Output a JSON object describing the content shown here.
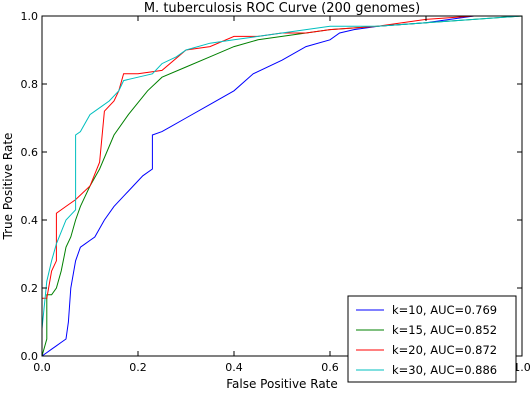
{
  "chart_data": {
    "type": "line",
    "title": "M. tuberculosis ROC Curve (200 genomes)",
    "xlabel": "False Positive Rate",
    "ylabel": "True Positive Rate",
    "xlim": [
      0.0,
      1.0
    ],
    "ylim": [
      0.0,
      1.0
    ],
    "xticks": [
      "0.0",
      "0.2",
      "0.4",
      "0.6",
      "0.8",
      "1.0"
    ],
    "yticks": [
      "0.0",
      "0.2",
      "0.4",
      "0.6",
      "0.8",
      "1.0"
    ],
    "legend_position": "lower-right",
    "grid": false,
    "series": [
      {
        "name": "k=10, AUC=0.769",
        "color": "#0000ff",
        "points": [
          [
            0,
            0
          ],
          [
            0.01,
            0.01
          ],
          [
            0.02,
            0.02
          ],
          [
            0.03,
            0.03
          ],
          [
            0.04,
            0.04
          ],
          [
            0.05,
            0.05
          ],
          [
            0.055,
            0.1
          ],
          [
            0.06,
            0.2
          ],
          [
            0.07,
            0.28
          ],
          [
            0.08,
            0.32
          ],
          [
            0.09,
            0.33
          ],
          [
            0.1,
            0.34
          ],
          [
            0.11,
            0.35
          ],
          [
            0.13,
            0.4
          ],
          [
            0.15,
            0.44
          ],
          [
            0.17,
            0.47
          ],
          [
            0.19,
            0.5
          ],
          [
            0.21,
            0.53
          ],
          [
            0.23,
            0.55
          ],
          [
            0.23,
            0.65
          ],
          [
            0.25,
            0.66
          ],
          [
            0.3,
            0.7
          ],
          [
            0.35,
            0.74
          ],
          [
            0.4,
            0.78
          ],
          [
            0.44,
            0.83
          ],
          [
            0.5,
            0.87
          ],
          [
            0.55,
            0.91
          ],
          [
            0.6,
            0.93
          ],
          [
            0.62,
            0.95
          ],
          [
            0.65,
            0.96
          ],
          [
            0.7,
            0.97
          ],
          [
            0.8,
            0.98
          ],
          [
            0.85,
            0.99
          ],
          [
            0.9,
            1.0
          ],
          [
            1.0,
            1.0
          ]
        ]
      },
      {
        "name": "k=15, AUC=0.852",
        "color": "#008000",
        "points": [
          [
            0,
            0
          ],
          [
            0.01,
            0.05
          ],
          [
            0.01,
            0.18
          ],
          [
            0.02,
            0.18
          ],
          [
            0.03,
            0.2
          ],
          [
            0.04,
            0.25
          ],
          [
            0.05,
            0.32
          ],
          [
            0.06,
            0.35
          ],
          [
            0.07,
            0.4
          ],
          [
            0.08,
            0.44
          ],
          [
            0.09,
            0.47
          ],
          [
            0.1,
            0.5
          ],
          [
            0.12,
            0.55
          ],
          [
            0.15,
            0.65
          ],
          [
            0.18,
            0.71
          ],
          [
            0.22,
            0.78
          ],
          [
            0.25,
            0.82
          ],
          [
            0.3,
            0.85
          ],
          [
            0.35,
            0.88
          ],
          [
            0.4,
            0.91
          ],
          [
            0.45,
            0.93
          ],
          [
            0.5,
            0.94
          ],
          [
            0.55,
            0.95
          ],
          [
            0.6,
            0.96
          ],
          [
            0.7,
            0.97
          ],
          [
            0.8,
            0.98
          ],
          [
            0.9,
            0.99
          ],
          [
            1.0,
            1.0
          ]
        ]
      },
      {
        "name": "k=20, AUC=0.872",
        "color": "#ff0000",
        "points": [
          [
            0,
            0
          ],
          [
            0,
            0.17
          ],
          [
            0.01,
            0.17
          ],
          [
            0.02,
            0.25
          ],
          [
            0.03,
            0.28
          ],
          [
            0.03,
            0.42
          ],
          [
            0.05,
            0.44
          ],
          [
            0.07,
            0.46
          ],
          [
            0.1,
            0.5
          ],
          [
            0.12,
            0.57
          ],
          [
            0.13,
            0.72
          ],
          [
            0.15,
            0.75
          ],
          [
            0.16,
            0.78
          ],
          [
            0.17,
            0.83
          ],
          [
            0.2,
            0.83
          ],
          [
            0.25,
            0.84
          ],
          [
            0.3,
            0.9
          ],
          [
            0.35,
            0.91
          ],
          [
            0.4,
            0.94
          ],
          [
            0.45,
            0.94
          ],
          [
            0.5,
            0.95
          ],
          [
            0.55,
            0.95
          ],
          [
            0.6,
            0.96
          ],
          [
            0.7,
            0.97
          ],
          [
            0.8,
            0.99
          ],
          [
            0.9,
            1.0
          ],
          [
            1.0,
            1.0
          ]
        ]
      },
      {
        "name": "k=30, AUC=0.886",
        "color": "#00bfbf",
        "points": [
          [
            0,
            0
          ],
          [
            0,
            0.08
          ],
          [
            0.01,
            0.22
          ],
          [
            0.02,
            0.28
          ],
          [
            0.03,
            0.33
          ],
          [
            0.05,
            0.4
          ],
          [
            0.07,
            0.43
          ],
          [
            0.07,
            0.65
          ],
          [
            0.08,
            0.66
          ],
          [
            0.1,
            0.71
          ],
          [
            0.12,
            0.73
          ],
          [
            0.14,
            0.75
          ],
          [
            0.16,
            0.78
          ],
          [
            0.17,
            0.81
          ],
          [
            0.2,
            0.82
          ],
          [
            0.23,
            0.83
          ],
          [
            0.25,
            0.86
          ],
          [
            0.28,
            0.88
          ],
          [
            0.3,
            0.9
          ],
          [
            0.35,
            0.92
          ],
          [
            0.4,
            0.93
          ],
          [
            0.45,
            0.94
          ],
          [
            0.5,
            0.95
          ],
          [
            0.55,
            0.96
          ],
          [
            0.6,
            0.97
          ],
          [
            0.7,
            0.97
          ],
          [
            0.8,
            0.98
          ],
          [
            0.9,
            0.99
          ],
          [
            1.0,
            1.0
          ]
        ]
      }
    ]
  }
}
